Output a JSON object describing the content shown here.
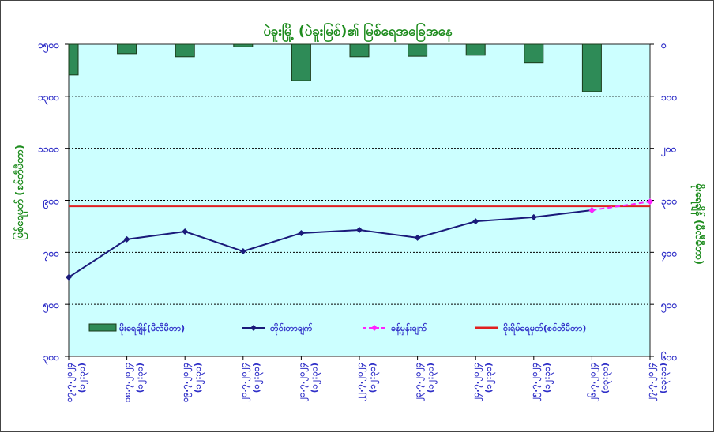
{
  "chart_data": {
    "type": "bar+line",
    "title": "ပဲခူးမြို့ (ပဲခူးမြစ်)၏ မြစ်ရေအခြေအနေ",
    "ylabel_left": "မြစ်ရေမှတ် (စင်တီမီတာ)",
    "ylabel_right": "မိုးရေချိန် (မီလီမီတာ)",
    "left_axis": {
      "range": [
        300,
        1500
      ],
      "ticks": [
        "၁၅၀၀",
        "၁၃၀၀",
        "၁၁၀၀",
        "၉၀၀",
        "၇၀၀",
        "၅၀၀",
        "၃၀၀"
      ],
      "tick_values": [
        1500,
        1300,
        1100,
        900,
        700,
        500,
        300
      ]
    },
    "right_axis": {
      "range": [
        0,
        600
      ],
      "reversed": true,
      "ticks": [
        "၀",
        "၁၀၀",
        "၂၀၀",
        "၃၀၀",
        "၄၀၀",
        "၅၀၀",
        "၆၀၀"
      ],
      "tick_values": [
        0,
        100,
        200,
        300,
        400,
        500,
        600
      ]
    },
    "categories": [
      {
        "date": "၁၇.၇.၂၀၂၄",
        "time": "(၁၂:၃၀)"
      },
      {
        "date": "၁၈.၇.၂၀၂၄",
        "time": "(၁၂:၃၀)"
      },
      {
        "date": "၁၉.၇.၂၀၂၄",
        "time": "(၁၂:၃၀)"
      },
      {
        "date": "၂၀.၇.၂၀၂၄",
        "time": "(၁၂:၃၀)"
      },
      {
        "date": "၂၁.၇.၂၀၂၄",
        "time": "(၁၂:၃၀)"
      },
      {
        "date": "၂၂.၇.၂၀၂၄",
        "time": "(၁၂:၃၀)"
      },
      {
        "date": "၂၃.၇.၂၀၂၄",
        "time": "(၁၂:၃၀)"
      },
      {
        "date": "၂၄.၇.၂၀၂၄",
        "time": "(၁၂:၃၀)"
      },
      {
        "date": "၂၅.၇.၂၀၂၄",
        "time": "(၁၂:၃၀)"
      },
      {
        "date": "၂၆.၇.၂၀၂၄",
        "time": "(၁၃:၃၀)"
      },
      {
        "date": "၂၇.၇.၂၀၂၄",
        "time": "(၁၃:၃၀)"
      }
    ],
    "series": [
      {
        "name": "မိုးရေချိန်(မီလီမီတာ)",
        "type": "bar",
        "axis": "right",
        "color": "#2e8b57",
        "values": [
          59,
          18,
          24,
          5,
          70,
          24,
          23,
          21,
          36,
          91,
          null
        ]
      },
      {
        "name": "တိုင်းတာချက်",
        "type": "line",
        "axis": "left",
        "color": "#1a1a7a",
        "values": [
          604,
          750,
          780,
          704,
          774,
          786,
          756,
          819,
          835,
          862,
          null
        ]
      },
      {
        "name": "ခန့်မှန်းချက်",
        "type": "line-dashed",
        "axis": "left",
        "color": "#ff22ff",
        "values": [
          null,
          null,
          null,
          null,
          null,
          null,
          null,
          null,
          null,
          862,
          895
        ]
      },
      {
        "name": "စိုးရိမ်ရေမှတ်(စင်တီမီတာ)",
        "type": "hline",
        "axis": "left",
        "color": "#e02020",
        "value": 877
      }
    ],
    "grid": true,
    "legend_position": "bottom-inside"
  }
}
